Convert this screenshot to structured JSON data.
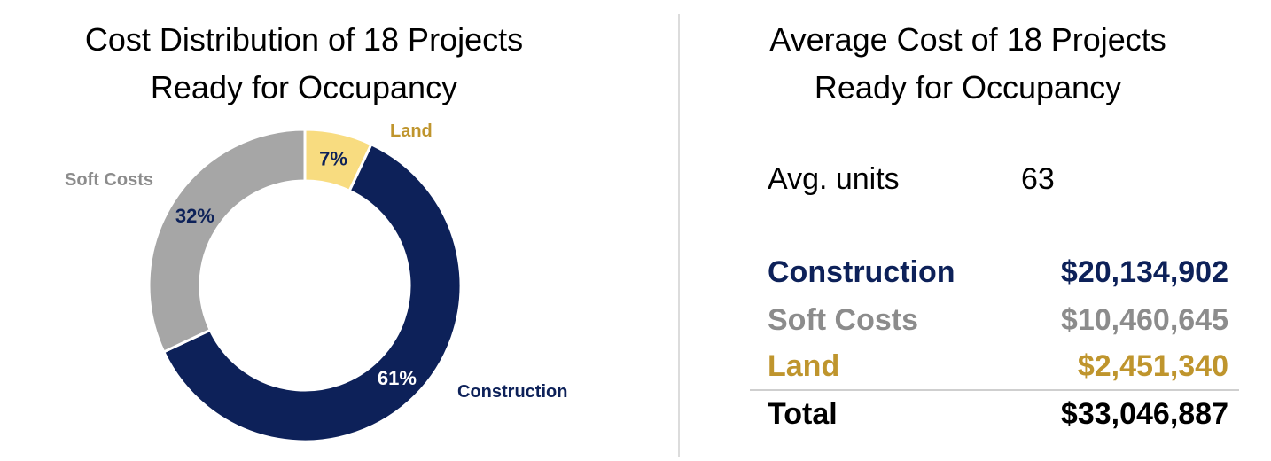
{
  "left": {
    "title_line1": "Cost Distribution of 18 Projects",
    "title_line2": "Ready for Occupancy"
  },
  "right": {
    "title_line1": "Average Cost of 18 Projects",
    "title_line2": "Ready for Occupancy",
    "avg_units_label": "Avg. units",
    "avg_units_value": "63",
    "rows": [
      {
        "label": "Construction",
        "value": "$20,134,902",
        "color": "#0d2159"
      },
      {
        "label": "Soft Costs",
        "value": "$10,460,645",
        "color": "#8c8c8c"
      },
      {
        "label": "Land",
        "value": "$2,451,340",
        "color": "#bf952d"
      }
    ],
    "total_label": "Total",
    "total_value": "$33,046,887"
  },
  "chart_data": {
    "type": "pie",
    "donut": true,
    "title": "Cost Distribution of 18 Projects Ready for Occupancy",
    "slices": [
      {
        "name": "Land",
        "value": 7,
        "label": "7%",
        "color": "#f8dc80",
        "name_color": "#bf952d",
        "label_color": "#0d2159"
      },
      {
        "name": "Construction",
        "value": 61,
        "label": "61%",
        "color": "#0d2159",
        "name_color": "#0d2159",
        "label_color": "#ffffff"
      },
      {
        "name": "Soft Costs",
        "value": 32,
        "label": "32%",
        "color": "#a6a6a6",
        "name_color": "#8c8c8c",
        "label_color": "#0d2159"
      }
    ]
  }
}
